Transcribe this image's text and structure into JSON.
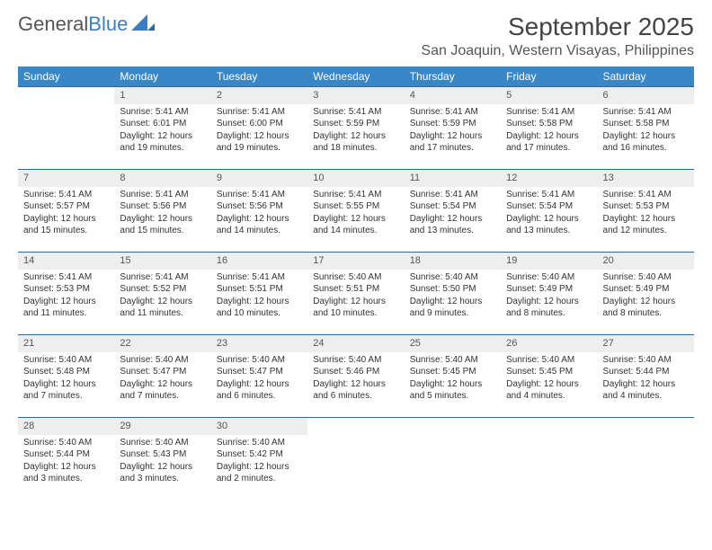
{
  "logo": {
    "part1": "General",
    "part2": "Blue"
  },
  "title": "September 2025",
  "location": "San Joaquin, Western Visayas, Philippines",
  "colors": {
    "header_bg": "#3a87c7",
    "header_text": "#ffffff",
    "daynum_bg": "#eeeeee",
    "row_border": "#2a6aa0",
    "logo_blue": "#3a7fc4"
  },
  "weekdays": [
    "Sunday",
    "Monday",
    "Tuesday",
    "Wednesday",
    "Thursday",
    "Friday",
    "Saturday"
  ],
  "weeks": [
    [
      {
        "n": "",
        "sr": "",
        "ss": "",
        "dl": ""
      },
      {
        "n": "1",
        "sr": "Sunrise: 5:41 AM",
        "ss": "Sunset: 6:01 PM",
        "dl": "Daylight: 12 hours and 19 minutes."
      },
      {
        "n": "2",
        "sr": "Sunrise: 5:41 AM",
        "ss": "Sunset: 6:00 PM",
        "dl": "Daylight: 12 hours and 19 minutes."
      },
      {
        "n": "3",
        "sr": "Sunrise: 5:41 AM",
        "ss": "Sunset: 5:59 PM",
        "dl": "Daylight: 12 hours and 18 minutes."
      },
      {
        "n": "4",
        "sr": "Sunrise: 5:41 AM",
        "ss": "Sunset: 5:59 PM",
        "dl": "Daylight: 12 hours and 17 minutes."
      },
      {
        "n": "5",
        "sr": "Sunrise: 5:41 AM",
        "ss": "Sunset: 5:58 PM",
        "dl": "Daylight: 12 hours and 17 minutes."
      },
      {
        "n": "6",
        "sr": "Sunrise: 5:41 AM",
        "ss": "Sunset: 5:58 PM",
        "dl": "Daylight: 12 hours and 16 minutes."
      }
    ],
    [
      {
        "n": "7",
        "sr": "Sunrise: 5:41 AM",
        "ss": "Sunset: 5:57 PM",
        "dl": "Daylight: 12 hours and 15 minutes."
      },
      {
        "n": "8",
        "sr": "Sunrise: 5:41 AM",
        "ss": "Sunset: 5:56 PM",
        "dl": "Daylight: 12 hours and 15 minutes."
      },
      {
        "n": "9",
        "sr": "Sunrise: 5:41 AM",
        "ss": "Sunset: 5:56 PM",
        "dl": "Daylight: 12 hours and 14 minutes."
      },
      {
        "n": "10",
        "sr": "Sunrise: 5:41 AM",
        "ss": "Sunset: 5:55 PM",
        "dl": "Daylight: 12 hours and 14 minutes."
      },
      {
        "n": "11",
        "sr": "Sunrise: 5:41 AM",
        "ss": "Sunset: 5:54 PM",
        "dl": "Daylight: 12 hours and 13 minutes."
      },
      {
        "n": "12",
        "sr": "Sunrise: 5:41 AM",
        "ss": "Sunset: 5:54 PM",
        "dl": "Daylight: 12 hours and 13 minutes."
      },
      {
        "n": "13",
        "sr": "Sunrise: 5:41 AM",
        "ss": "Sunset: 5:53 PM",
        "dl": "Daylight: 12 hours and 12 minutes."
      }
    ],
    [
      {
        "n": "14",
        "sr": "Sunrise: 5:41 AM",
        "ss": "Sunset: 5:53 PM",
        "dl": "Daylight: 12 hours and 11 minutes."
      },
      {
        "n": "15",
        "sr": "Sunrise: 5:41 AM",
        "ss": "Sunset: 5:52 PM",
        "dl": "Daylight: 12 hours and 11 minutes."
      },
      {
        "n": "16",
        "sr": "Sunrise: 5:41 AM",
        "ss": "Sunset: 5:51 PM",
        "dl": "Daylight: 12 hours and 10 minutes."
      },
      {
        "n": "17",
        "sr": "Sunrise: 5:40 AM",
        "ss": "Sunset: 5:51 PM",
        "dl": "Daylight: 12 hours and 10 minutes."
      },
      {
        "n": "18",
        "sr": "Sunrise: 5:40 AM",
        "ss": "Sunset: 5:50 PM",
        "dl": "Daylight: 12 hours and 9 minutes."
      },
      {
        "n": "19",
        "sr": "Sunrise: 5:40 AM",
        "ss": "Sunset: 5:49 PM",
        "dl": "Daylight: 12 hours and 8 minutes."
      },
      {
        "n": "20",
        "sr": "Sunrise: 5:40 AM",
        "ss": "Sunset: 5:49 PM",
        "dl": "Daylight: 12 hours and 8 minutes."
      }
    ],
    [
      {
        "n": "21",
        "sr": "Sunrise: 5:40 AM",
        "ss": "Sunset: 5:48 PM",
        "dl": "Daylight: 12 hours and 7 minutes."
      },
      {
        "n": "22",
        "sr": "Sunrise: 5:40 AM",
        "ss": "Sunset: 5:47 PM",
        "dl": "Daylight: 12 hours and 7 minutes."
      },
      {
        "n": "23",
        "sr": "Sunrise: 5:40 AM",
        "ss": "Sunset: 5:47 PM",
        "dl": "Daylight: 12 hours and 6 minutes."
      },
      {
        "n": "24",
        "sr": "Sunrise: 5:40 AM",
        "ss": "Sunset: 5:46 PM",
        "dl": "Daylight: 12 hours and 6 minutes."
      },
      {
        "n": "25",
        "sr": "Sunrise: 5:40 AM",
        "ss": "Sunset: 5:45 PM",
        "dl": "Daylight: 12 hours and 5 minutes."
      },
      {
        "n": "26",
        "sr": "Sunrise: 5:40 AM",
        "ss": "Sunset: 5:45 PM",
        "dl": "Daylight: 12 hours and 4 minutes."
      },
      {
        "n": "27",
        "sr": "Sunrise: 5:40 AM",
        "ss": "Sunset: 5:44 PM",
        "dl": "Daylight: 12 hours and 4 minutes."
      }
    ],
    [
      {
        "n": "28",
        "sr": "Sunrise: 5:40 AM",
        "ss": "Sunset: 5:44 PM",
        "dl": "Daylight: 12 hours and 3 minutes."
      },
      {
        "n": "29",
        "sr": "Sunrise: 5:40 AM",
        "ss": "Sunset: 5:43 PM",
        "dl": "Daylight: 12 hours and 3 minutes."
      },
      {
        "n": "30",
        "sr": "Sunrise: 5:40 AM",
        "ss": "Sunset: 5:42 PM",
        "dl": "Daylight: 12 hours and 2 minutes."
      },
      {
        "n": "",
        "sr": "",
        "ss": "",
        "dl": ""
      },
      {
        "n": "",
        "sr": "",
        "ss": "",
        "dl": ""
      },
      {
        "n": "",
        "sr": "",
        "ss": "",
        "dl": ""
      },
      {
        "n": "",
        "sr": "",
        "ss": "",
        "dl": ""
      }
    ]
  ]
}
